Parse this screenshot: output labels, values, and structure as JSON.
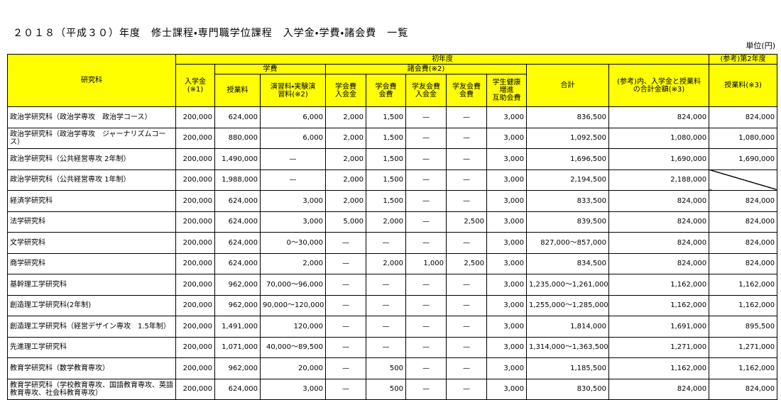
{
  "title": "２０１８（平成３０）年度　修士課程・専門職学位課程　入学金・学費・諸会費　一覧",
  "unit": "単位(円)",
  "header": {
    "department": "研究科",
    "first_year": "初年度",
    "second_year": "(参考)第2年度",
    "admission": "入学金\n(※1)",
    "tuition_group": "学費",
    "fees_group": "諸会費(※2)",
    "total": "合計",
    "reference_total": "(参考)内、入学金と授業料\nの合計金額(※3)",
    "tuition_second": "授業料(※3)",
    "sub": [
      "授業料",
      "演習料・実験演\n習料(※2)",
      "学会費\n入会金",
      "学会費\n会費",
      "学友会費\n入会金",
      "学友会費\n会費",
      "学生健康\n増進\n互助会費"
    ]
  },
  "table": {
    "rows": [
      [
        "政治学研究科（政治学専攻　政治学コース）",
        "200,000",
        "624,000",
        "6,000",
        "2,000",
        "1,500",
        "—",
        "—",
        "3,000",
        "836,500",
        "824,000",
        "824,000"
      ],
      [
        "政治学研究科（政治学専攻　ジャーナリズムコース）",
        "200,000",
        "880,000",
        "6,000",
        "2,000",
        "1,500",
        "—",
        "—",
        "3,000",
        "1,092,500",
        "1,080,000",
        "1,080,000"
      ],
      [
        "政治学研究科（公共経営専攻 2年制）",
        "200,000",
        "1,490,000",
        "—",
        "2,000",
        "1,500",
        "—",
        "—",
        "3,000",
        "1,696,500",
        "1,690,000",
        "1,690,000"
      ],
      [
        "政治学研究科（公共経営専攻 1年制）",
        "200,000",
        "1,988,000",
        "—",
        "2,000",
        "1,500",
        "—",
        "—",
        "3,000",
        "2,194,500",
        "2,188,000",
        null
      ],
      [
        "経済学研究科",
        "200,000",
        "624,000",
        "3,000",
        "2,000",
        "1,500",
        "—",
        "—",
        "3,000",
        "833,500",
        "824,000",
        "824,000"
      ],
      [
        "法学研究科",
        "200,000",
        "624,000",
        "3,000",
        "5,000",
        "2,000",
        "—",
        "2,500",
        "3,000",
        "839,500",
        "824,000",
        "824,000"
      ],
      [
        "文学研究科",
        "200,000",
        "624,000",
        "0～30,000",
        "—",
        "—",
        "—",
        "—",
        "3,000",
        "827,000～857,000",
        "824,000",
        "824,000"
      ],
      [
        "商学研究科",
        "200,000",
        "624,000",
        "2,000",
        "—",
        "2,000",
        "1,000",
        "2,500",
        "3,000",
        "834,500",
        "824,000",
        "824,000"
      ],
      [
        "基幹理工学研究科",
        "200,000",
        "962,000",
        "70,000～96,000",
        "—",
        "—",
        "—",
        "—",
        "3,000",
        "1,235,000～1,261,000",
        "1,162,000",
        "1,162,000"
      ],
      [
        "創造理工学研究科(2年制)",
        "200,000",
        "962,000",
        "90,000～120,000",
        "—",
        "—",
        "—",
        "—",
        "3,000",
        "1,255,000～1,285,000",
        "1,162,000",
        "1,162,000"
      ],
      [
        "創造理工学研究科（経営デザイン専攻　1.5年制）",
        "200,000",
        "1,491,000",
        "120,000",
        "—",
        "—",
        "—",
        "—",
        "3,000",
        "1,814,000",
        "1,691,000",
        "895,500"
      ],
      [
        "先進理工学研究科",
        "200,000",
        "1,071,000",
        "40,000～89,500",
        "—",
        "—",
        "—",
        "—",
        "3,000",
        "1,314,000～1,363,500",
        "1,271,000",
        "1,271,000"
      ],
      [
        "教育学研究科（数学教育専攻）",
        "200,000",
        "962,000",
        "20,000",
        "—",
        "500",
        "—",
        "—",
        "3,000",
        "1,185,500",
        "1,162,000",
        "1,162,000"
      ],
      [
        "教育学研究科（学校教育専攻、国語教育専攻、英語教育専攻、社会科教育専攻）",
        "200,000",
        "624,000",
        "3,000",
        "—",
        "500",
        "—",
        "—",
        "3,000",
        "830,500",
        "824,000",
        "824,000"
      ]
    ]
  }
}
